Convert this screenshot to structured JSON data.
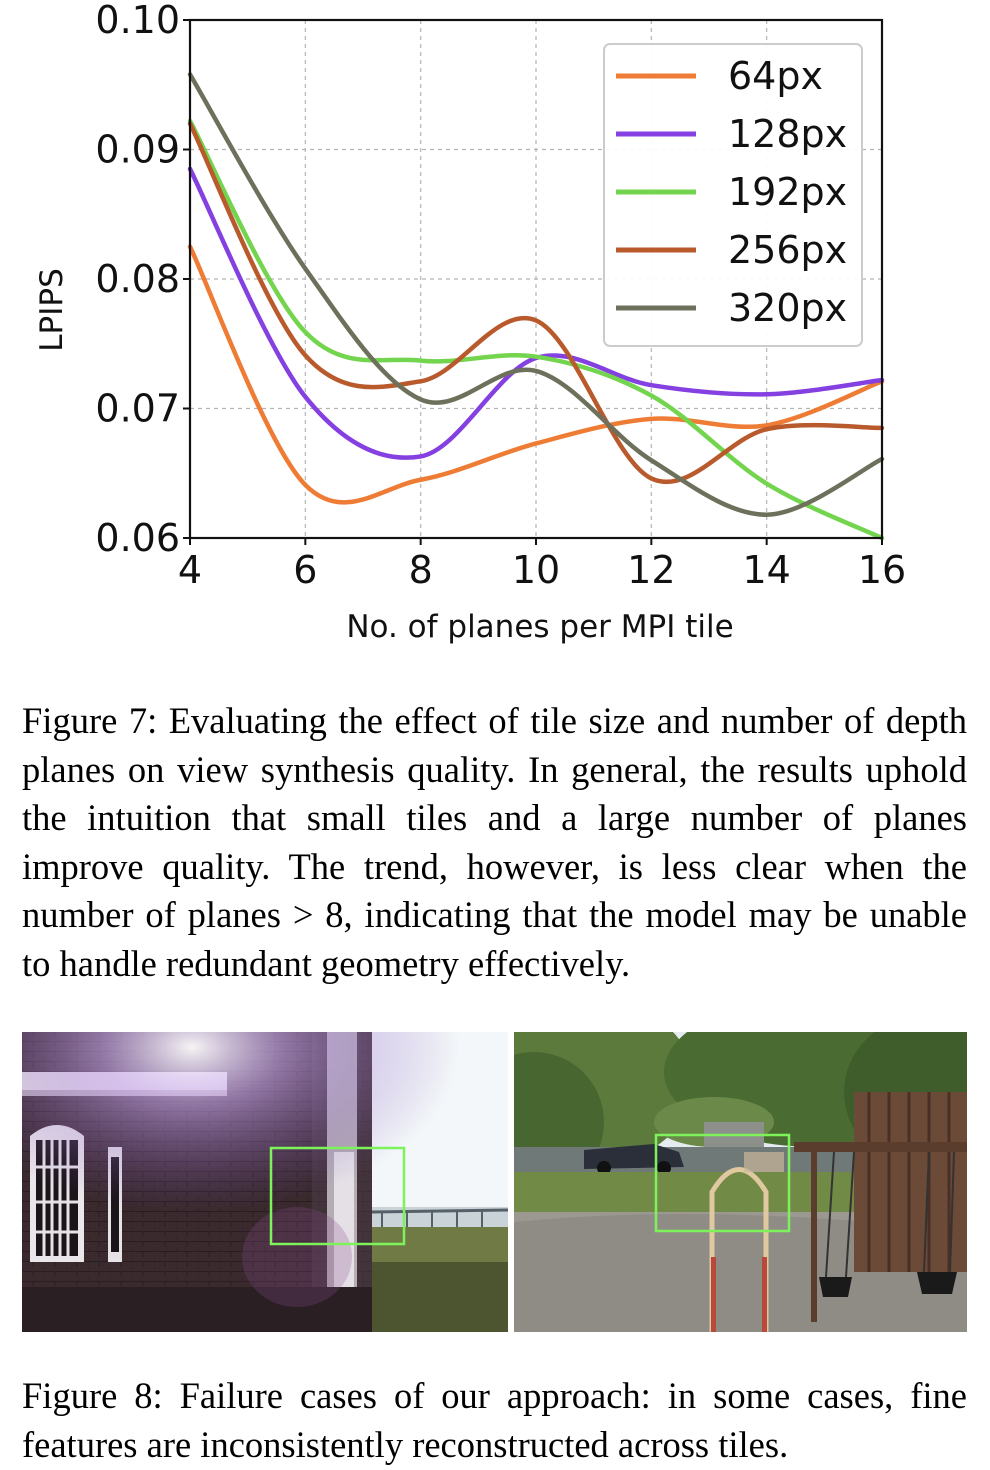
{
  "chart_data": {
    "type": "line",
    "title": "",
    "xlabel": "No. of planes per MPI tile",
    "ylabel": "LPIPS",
    "x": [
      4,
      6,
      8,
      10,
      12,
      14,
      16
    ],
    "x_ticks": [
      "4",
      "6",
      "8",
      "10",
      "12",
      "14",
      "16"
    ],
    "y_ticks": [
      "0.06",
      "0.07",
      "0.08",
      "0.09",
      "0.10"
    ],
    "xlim": [
      4,
      16
    ],
    "ylim": [
      0.06,
      0.1
    ],
    "grid": true,
    "legend_position": "top-right",
    "series": [
      {
        "name": "64px",
        "color": "#ee7c35",
        "values": [
          0.0825,
          0.0641,
          0.0645,
          0.0673,
          0.0692,
          0.0687,
          0.0721
        ]
      },
      {
        "name": "128px",
        "color": "#8440e0",
        "values": [
          0.0885,
          0.0709,
          0.0663,
          0.0739,
          0.0718,
          0.0711,
          0.0722
        ]
      },
      {
        "name": "192px",
        "color": "#73d44e",
        "values": [
          0.0922,
          0.0759,
          0.0737,
          0.074,
          0.071,
          0.0642,
          0.06
        ]
      },
      {
        "name": "256px",
        "color": "#b95a2c",
        "values": [
          0.092,
          0.0741,
          0.0721,
          0.0768,
          0.0646,
          0.0684,
          0.0685
        ]
      },
      {
        "name": "320px",
        "color": "#6d705b",
        "values": [
          0.0958,
          0.0808,
          0.0707,
          0.0729,
          0.066,
          0.0618,
          0.0661
        ]
      }
    ]
  },
  "figure7": {
    "caption": "Figure 7: Evaluating the effect of tile size and number of depth planes on view synthesis quality. In general, the results uphold the intuition that small tiles and a large number of planes improve quality. The trend, however, is less clear when the number of planes > 8, indicating that the model may be unable to handle redundant geometry effectively."
  },
  "figure8": {
    "caption": "Figure 8: Failure cases of our approach: in some cases, fine features are inconsistently reconstructed across tiles."
  },
  "colors": {
    "highlight_box": "#7df25a",
    "grid": "#b5b5b5"
  }
}
